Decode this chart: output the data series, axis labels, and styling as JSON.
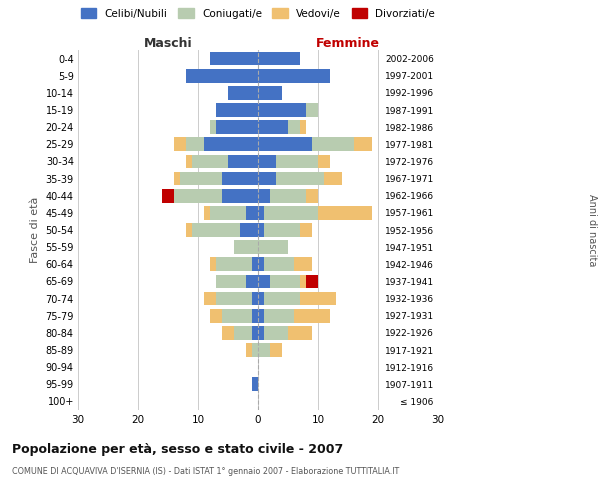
{
  "age_groups": [
    "100+",
    "95-99",
    "90-94",
    "85-89",
    "80-84",
    "75-79",
    "70-74",
    "65-69",
    "60-64",
    "55-59",
    "50-54",
    "45-49",
    "40-44",
    "35-39",
    "30-34",
    "25-29",
    "20-24",
    "15-19",
    "10-14",
    "5-9",
    "0-4"
  ],
  "birth_years": [
    "≤ 1906",
    "1907-1911",
    "1912-1916",
    "1917-1921",
    "1922-1926",
    "1927-1931",
    "1932-1936",
    "1937-1941",
    "1942-1946",
    "1947-1951",
    "1952-1956",
    "1957-1961",
    "1962-1966",
    "1967-1971",
    "1972-1976",
    "1977-1981",
    "1982-1986",
    "1987-1991",
    "1992-1996",
    "1997-2001",
    "2002-2006"
  ],
  "maschi": {
    "celibi": [
      0,
      1,
      0,
      0,
      1,
      1,
      1,
      2,
      1,
      0,
      3,
      2,
      6,
      6,
      5,
      9,
      7,
      7,
      5,
      12,
      8
    ],
    "coniugati": [
      0,
      0,
      0,
      1,
      3,
      5,
      6,
      5,
      6,
      4,
      8,
      6,
      8,
      7,
      6,
      3,
      1,
      0,
      0,
      0,
      0
    ],
    "vedovi": [
      0,
      0,
      0,
      1,
      2,
      2,
      2,
      0,
      1,
      0,
      1,
      1,
      0,
      1,
      1,
      2,
      0,
      0,
      0,
      0,
      0
    ],
    "divorziati": [
      0,
      0,
      0,
      0,
      0,
      0,
      0,
      0,
      0,
      0,
      0,
      0,
      2,
      0,
      0,
      0,
      0,
      0,
      0,
      0,
      0
    ]
  },
  "femmine": {
    "nubili": [
      0,
      0,
      0,
      0,
      1,
      1,
      1,
      2,
      1,
      0,
      1,
      1,
      2,
      3,
      3,
      9,
      5,
      8,
      4,
      12,
      7
    ],
    "coniugate": [
      0,
      0,
      0,
      2,
      4,
      5,
      6,
      5,
      5,
      5,
      6,
      9,
      6,
      8,
      7,
      7,
      2,
      2,
      0,
      0,
      0
    ],
    "vedove": [
      0,
      0,
      0,
      2,
      4,
      6,
      6,
      1,
      3,
      0,
      2,
      9,
      2,
      3,
      2,
      3,
      1,
      0,
      0,
      0,
      0
    ],
    "divorziate": [
      0,
      0,
      0,
      0,
      0,
      0,
      0,
      2,
      0,
      0,
      0,
      0,
      0,
      0,
      0,
      0,
      0,
      0,
      0,
      0,
      0
    ]
  },
  "colors": {
    "celibi": "#4472C4",
    "coniugati": "#B8CCB0",
    "vedovi": "#F0C070",
    "divorziati": "#C00000"
  },
  "title": "Popolazione per età, sesso e stato civile - 2007",
  "subtitle": "COMUNE DI ACQUAVIVA D'ISERNIA (IS) - Dati ISTAT 1° gennaio 2007 - Elaborazione TUTTITALIA.IT",
  "xlabel_left": "Maschi",
  "xlabel_right": "Femmine",
  "ylabel": "Fasce di età",
  "ylabel_right": "Anni di nascita",
  "xlim": 30,
  "legend_labels": [
    "Celibi/Nubili",
    "Coniugati/e",
    "Vedovi/e",
    "Divorziati/e"
  ],
  "background_color": "#ffffff",
  "grid_color": "#cccccc"
}
